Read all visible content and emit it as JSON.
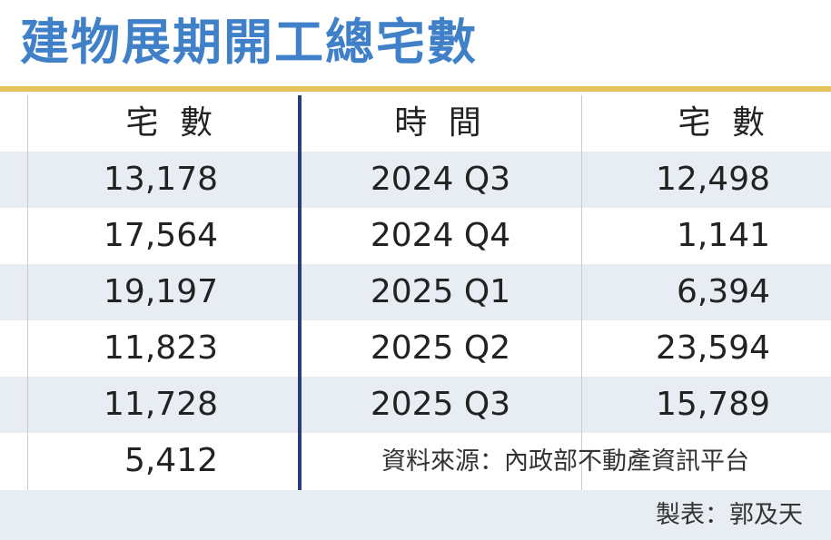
{
  "title": "建物展期開工總宅數",
  "table": {
    "columns": [
      "宅 數",
      "時 間",
      "宅 數"
    ],
    "rows": [
      [
        "13,178",
        "2024 Q3",
        "12,498"
      ],
      [
        "17,564",
        "2024 Q4",
        "1,141"
      ],
      [
        "19,197",
        "2025 Q1",
        "6,394"
      ],
      [
        "11,823",
        "2025 Q2",
        "23,594"
      ],
      [
        "11,728",
        "2025 Q3",
        "15,789"
      ],
      [
        "5,412"
      ]
    ]
  },
  "source": "資料來源：內政部不動產資訊平台",
  "credit": "製表：郭及天"
}
